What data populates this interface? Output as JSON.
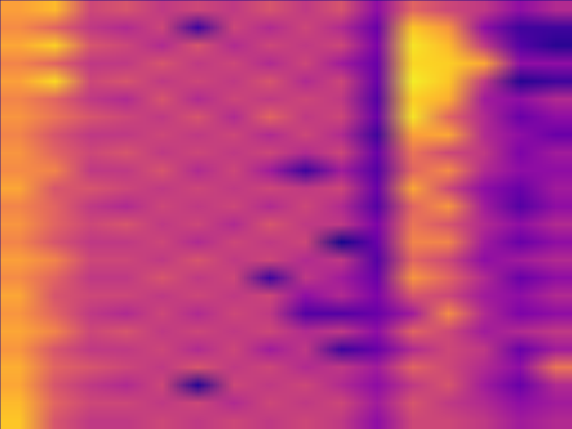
{
  "chart_data": {
    "type": "heatmap",
    "tick_labels": false,
    "zlim": [
      0,
      1
    ],
    "cells": [
      [
        0.78,
        0.85,
        0.5,
        0.55,
        0.45,
        0.5,
        0.45,
        0.55,
        0.45,
        0.55,
        0.3,
        0.6,
        0.5,
        0.45,
        0.3,
        0.4
      ],
      [
        0.72,
        0.6,
        0.45,
        0.4,
        0.5,
        0.1,
        0.5,
        0.4,
        0.5,
        0.4,
        0.2,
        0.88,
        0.75,
        0.3,
        0.1,
        0.1
      ],
      [
        0.8,
        0.9,
        0.55,
        0.5,
        0.4,
        0.55,
        0.4,
        0.5,
        0.45,
        0.5,
        0.25,
        0.95,
        0.85,
        0.45,
        0.15,
        0.05
      ],
      [
        0.7,
        0.6,
        0.45,
        0.45,
        0.55,
        0.45,
        0.5,
        0.4,
        0.5,
        0.35,
        0.2,
        0.92,
        0.9,
        0.8,
        0.3,
        0.3
      ],
      [
        0.78,
        0.92,
        0.5,
        0.55,
        0.45,
        0.5,
        0.45,
        0.55,
        0.4,
        0.5,
        0.2,
        0.97,
        0.88,
        0.45,
        0.05,
        0.1
      ],
      [
        0.7,
        0.6,
        0.45,
        0.4,
        0.55,
        0.4,
        0.5,
        0.45,
        0.5,
        0.45,
        0.15,
        0.9,
        0.82,
        0.35,
        0.3,
        0.4
      ],
      [
        0.75,
        0.65,
        0.55,
        0.5,
        0.45,
        0.55,
        0.4,
        0.6,
        0.45,
        0.5,
        0.2,
        0.95,
        0.6,
        0.4,
        0.2,
        0.3
      ],
      [
        0.7,
        0.55,
        0.45,
        0.45,
        0.5,
        0.45,
        0.5,
        0.4,
        0.5,
        0.4,
        0.1,
        0.78,
        0.8,
        0.4,
        0.3,
        0.2
      ],
      [
        0.75,
        0.6,
        0.5,
        0.55,
        0.45,
        0.5,
        0.45,
        0.5,
        0.4,
        0.5,
        0.2,
        0.65,
        0.5,
        0.45,
        0.25,
        0.35
      ],
      [
        0.72,
        0.7,
        0.45,
        0.45,
        0.55,
        0.4,
        0.5,
        0.35,
        0.1,
        0.35,
        0.15,
        0.6,
        0.72,
        0.4,
        0.3,
        0.3
      ],
      [
        0.8,
        0.55,
        0.55,
        0.5,
        0.45,
        0.5,
        0.45,
        0.5,
        0.45,
        0.5,
        0.2,
        0.8,
        0.5,
        0.3,
        0.2,
        0.35
      ],
      [
        0.7,
        0.6,
        0.45,
        0.4,
        0.5,
        0.45,
        0.5,
        0.4,
        0.5,
        0.4,
        0.15,
        0.6,
        0.75,
        0.35,
        0.15,
        0.3
      ],
      [
        0.75,
        0.6,
        0.5,
        0.55,
        0.45,
        0.5,
        0.4,
        0.55,
        0.45,
        0.45,
        0.25,
        0.65,
        0.55,
        0.4,
        0.3,
        0.4
      ],
      [
        0.7,
        0.55,
        0.45,
        0.45,
        0.5,
        0.4,
        0.5,
        0.45,
        0.5,
        0.02,
        0.2,
        0.7,
        0.7,
        0.35,
        0.2,
        0.3
      ],
      [
        0.78,
        0.7,
        0.5,
        0.5,
        0.45,
        0.55,
        0.45,
        0.5,
        0.4,
        0.45,
        0.15,
        0.6,
        0.5,
        0.3,
        0.35,
        0.4
      ],
      [
        0.72,
        0.6,
        0.45,
        0.45,
        0.55,
        0.45,
        0.5,
        0.1,
        0.45,
        0.35,
        0.2,
        0.75,
        0.6,
        0.4,
        0.2,
        0.3
      ],
      [
        0.8,
        0.55,
        0.5,
        0.5,
        0.45,
        0.5,
        0.45,
        0.5,
        0.3,
        0.4,
        0.25,
        0.55,
        0.5,
        0.35,
        0.3,
        0.4
      ],
      [
        0.75,
        0.6,
        0.45,
        0.4,
        0.5,
        0.4,
        0.5,
        0.45,
        0.15,
        0.15,
        0.2,
        0.35,
        0.72,
        0.4,
        0.25,
        0.3
      ],
      [
        0.8,
        0.7,
        0.5,
        0.55,
        0.45,
        0.5,
        0.45,
        0.5,
        0.4,
        0.45,
        0.3,
        0.6,
        0.5,
        0.35,
        0.4,
        0.45
      ],
      [
        0.75,
        0.55,
        0.45,
        0.45,
        0.5,
        0.4,
        0.5,
        0.35,
        0.45,
        0.1,
        0.2,
        0.4,
        0.5,
        0.45,
        0.2,
        0.35
      ],
      [
        0.82,
        0.6,
        0.55,
        0.5,
        0.45,
        0.55,
        0.45,
        0.5,
        0.4,
        0.45,
        0.35,
        0.6,
        0.5,
        0.4,
        0.3,
        0.65
      ],
      [
        0.8,
        0.55,
        0.45,
        0.4,
        0.5,
        0.05,
        0.5,
        0.45,
        0.5,
        0.4,
        0.3,
        0.45,
        0.55,
        0.35,
        0.2,
        0.4
      ],
      [
        0.85,
        0.6,
        0.5,
        0.5,
        0.45,
        0.5,
        0.4,
        0.5,
        0.45,
        0.5,
        0.35,
        0.55,
        0.45,
        0.4,
        0.3,
        0.35
      ],
      [
        0.88,
        0.55,
        0.45,
        0.45,
        0.5,
        0.45,
        0.5,
        0.45,
        0.5,
        0.45,
        0.3,
        0.5,
        0.5,
        0.45,
        0.35,
        0.4
      ]
    ]
  }
}
